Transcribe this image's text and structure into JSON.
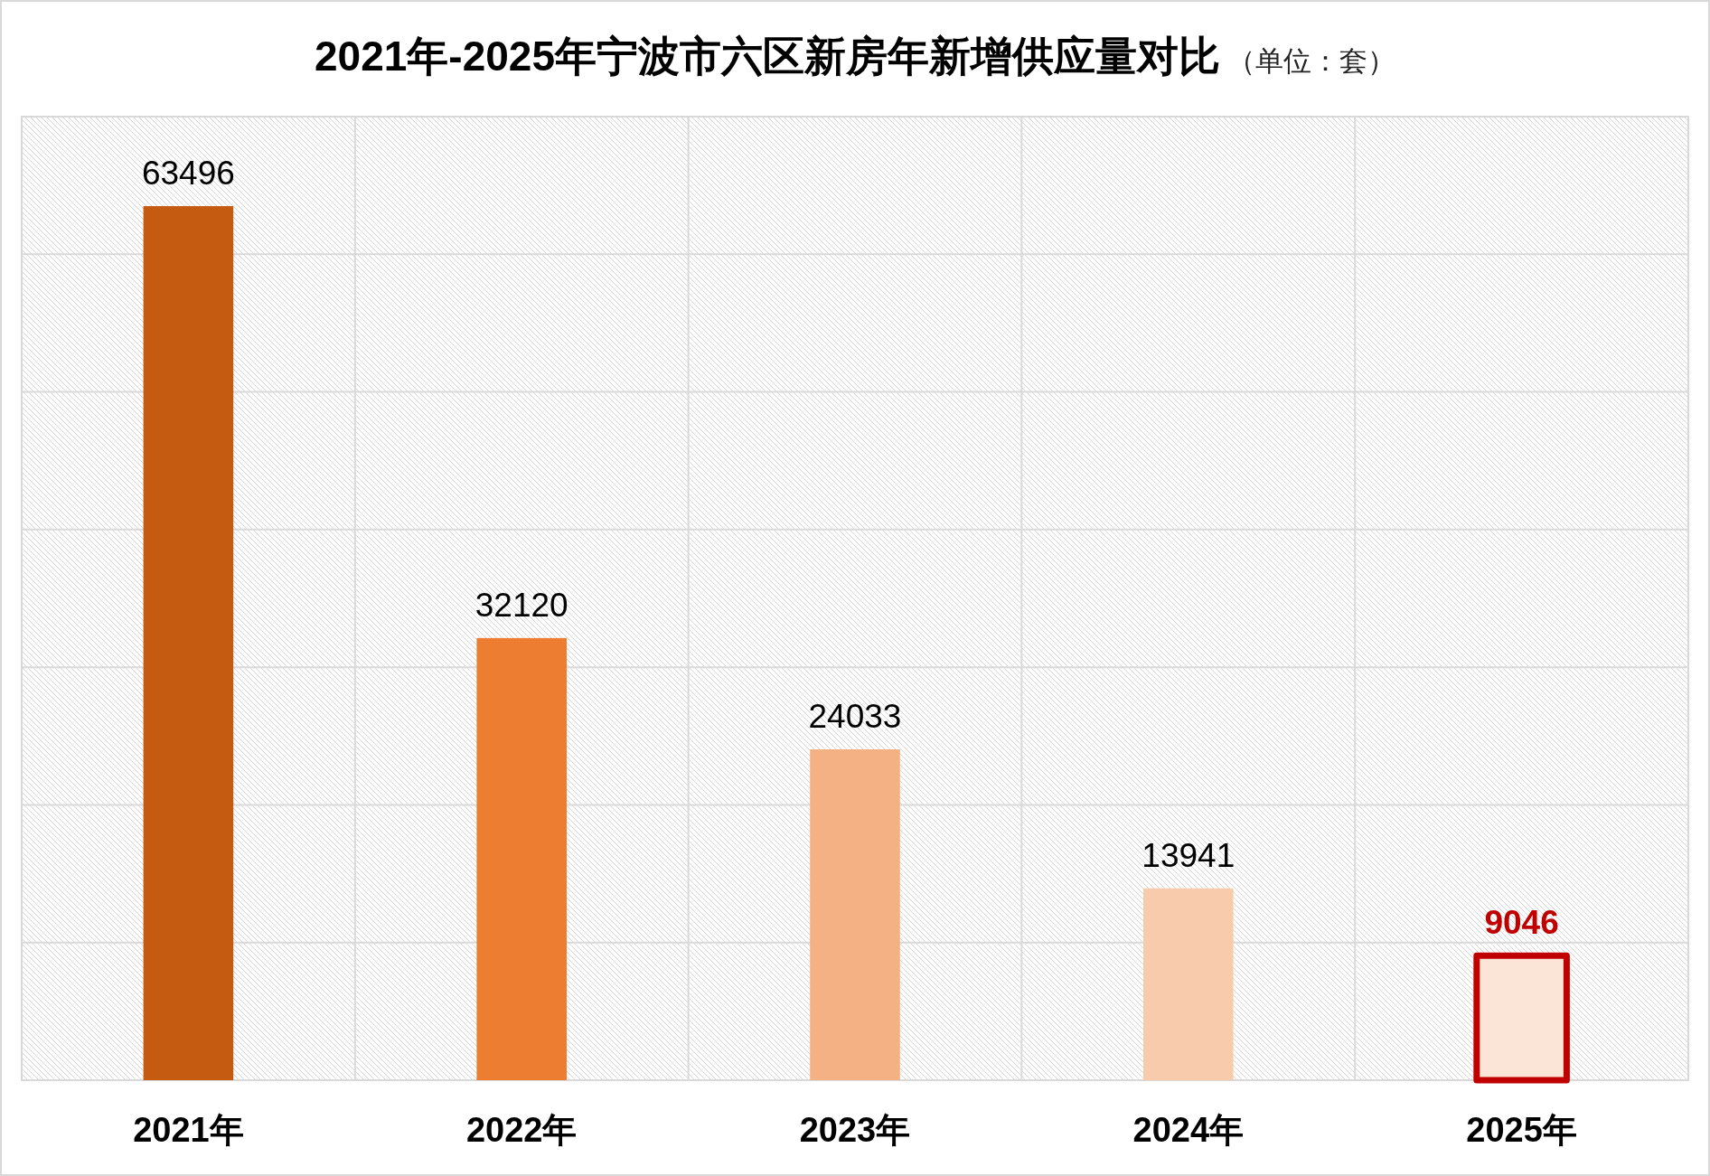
{
  "chart_data": {
    "type": "bar",
    "title": "2021年-2025年宁波市六区新房年新增供应量对比",
    "subtitle": "（单位：套）",
    "categories": [
      "2021年",
      "2022年",
      "2023年",
      "2024年",
      "2025年"
    ],
    "values": [
      63496,
      32120,
      24033,
      13941,
      9046
    ],
    "colors": [
      "#c55a11",
      "#ed7d31",
      "#f4b183",
      "#f8cbad",
      "#fbe5d6"
    ],
    "value_labels": [
      "63496",
      "32120",
      "24033",
      "13941",
      null
    ],
    "annotations": [
      {
        "text": "9046",
        "x": "2025年",
        "y": 9046
      }
    ],
    "ylim": [
      0,
      70000
    ],
    "yticks": [
      {
        "value": 0,
        "label": null
      },
      {
        "value": 10000,
        "label": null
      },
      {
        "value": 20000,
        "label": null
      },
      {
        "value": 30000,
        "label": null
      },
      {
        "value": 40000,
        "label": null
      },
      {
        "value": 50000,
        "label": null
      },
      {
        "value": 60000,
        "label": null
      },
      {
        "value": 70000,
        "label": null
      }
    ],
    "tick_labels": "x",
    "grid": true
  }
}
